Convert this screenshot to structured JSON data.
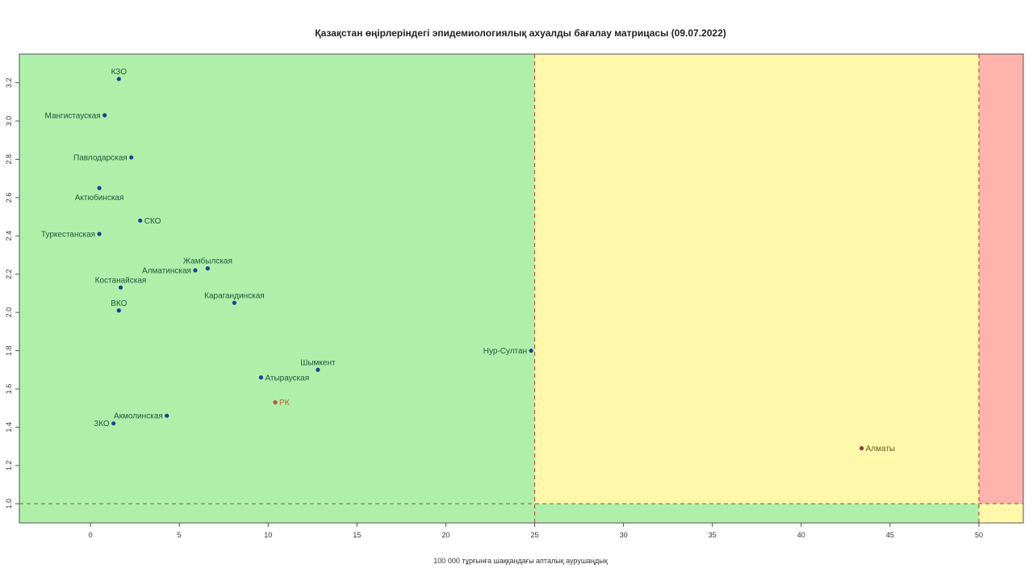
{
  "chart_data": {
    "type": "scatter",
    "title": "Қазақстан өңірлеріндегі эпидемиологиялық ахуалды бағалау матрицасы  (09.07.2022)",
    "xlabel": "100 000 тұрғынға шаққандағы апталық аурушаңдық",
    "ylabel": "",
    "xlim": [
      -4,
      52.5
    ],
    "ylim": [
      0.9,
      3.35
    ],
    "x_ticks": [
      0,
      5,
      10,
      15,
      20,
      25,
      30,
      35,
      40,
      45,
      50
    ],
    "y_ticks": [
      1.0,
      1.2,
      1.4,
      1.6,
      1.8,
      2.0,
      2.2,
      2.4,
      2.6,
      2.8,
      3.0,
      3.2
    ],
    "y_tick_labels": [
      "1.0",
      "1.2",
      "1.4",
      "1.6",
      "1.8",
      "2.0",
      "2.2",
      "2.4",
      "2.6",
      "2.8",
      "3.0",
      "3.2"
    ],
    "zones": [
      {
        "name": "green",
        "x_from": -4,
        "x_to": 25,
        "y_from": 1.0,
        "y_to": 3.35,
        "color": "#aef0aa"
      },
      {
        "name": "yellow",
        "x_from": 25,
        "x_to": 50,
        "y_from": 1.0,
        "y_to": 3.35,
        "color": "#fff8aa"
      },
      {
        "name": "red",
        "x_from": 50,
        "x_to": 52.5,
        "y_from": 1.0,
        "y_to": 3.35,
        "color": "#ffb3ad"
      },
      {
        "name": "green-bottom",
        "x_from": -4,
        "x_to": 50,
        "y_from": 0.9,
        "y_to": 1.0,
        "color": "#aef0aa"
      },
      {
        "name": "yellow-bottom",
        "x_from": 50,
        "x_to": 52.5,
        "y_from": 0.9,
        "y_to": 1.0,
        "color": "#fff8aa"
      }
    ],
    "thresholds": {
      "x": [
        25,
        50
      ],
      "y": [
        1.0
      ]
    },
    "points": [
      {
        "label": "КЗО",
        "x": 1.6,
        "y": 3.22,
        "pos": "above",
        "color": "#1f3f8f",
        "label_color": "#1a5a3a"
      },
      {
        "label": "Мангистауская",
        "x": 0.8,
        "y": 3.03,
        "pos": "left",
        "color": "#1f3f8f",
        "label_color": "#1a5a3a"
      },
      {
        "label": "Павлодарская",
        "x": 2.3,
        "y": 2.81,
        "pos": "left",
        "color": "#1f3f8f",
        "label_color": "#1a5a3a"
      },
      {
        "label": "Актюбинская",
        "x": 0.5,
        "y": 2.65,
        "pos": "below",
        "color": "#1f3f8f",
        "label_color": "#1a5a3a"
      },
      {
        "label": "СКО",
        "x": 2.8,
        "y": 2.48,
        "pos": "right",
        "color": "#1f3f8f",
        "label_color": "#1a5a3a"
      },
      {
        "label": "Туркестанская",
        "x": 0.5,
        "y": 2.41,
        "pos": "left",
        "color": "#1f3f8f",
        "label_color": "#1a5a3a"
      },
      {
        "label": "Жамбылская",
        "x": 6.6,
        "y": 2.23,
        "pos": "above",
        "color": "#1f3f8f",
        "label_color": "#1a5a3a"
      },
      {
        "label": "Алматинская",
        "x": 5.9,
        "y": 2.22,
        "pos": "left",
        "color": "#1f3f8f",
        "label_color": "#1a5a3a"
      },
      {
        "label": "Костанайская",
        "x": 1.7,
        "y": 2.13,
        "pos": "above",
        "color": "#1f3f8f",
        "label_color": "#1a5a3a"
      },
      {
        "label": "Карагандинская",
        "x": 8.1,
        "y": 2.05,
        "pos": "above",
        "color": "#1f3f8f",
        "label_color": "#1a5a3a"
      },
      {
        "label": "ВКО",
        "x": 1.6,
        "y": 2.01,
        "pos": "above",
        "color": "#1f3f8f",
        "label_color": "#1a5a3a"
      },
      {
        "label": "Нур-Султан",
        "x": 24.8,
        "y": 1.8,
        "pos": "left",
        "color": "#1f3f8f",
        "label_color": "#1a5a3a"
      },
      {
        "label": "Шымкент",
        "x": 12.8,
        "y": 1.7,
        "pos": "above",
        "color": "#1f3f8f",
        "label_color": "#1a5a3a"
      },
      {
        "label": "Атырауская",
        "x": 9.6,
        "y": 1.66,
        "pos": "right",
        "color": "#1f3f8f",
        "label_color": "#1a5a3a"
      },
      {
        "label": "РК",
        "x": 10.4,
        "y": 1.53,
        "pos": "right",
        "color": "#c0504d",
        "label_color": "#c06030"
      },
      {
        "label": "Акмолинская",
        "x": 4.3,
        "y": 1.46,
        "pos": "left",
        "color": "#1f3f8f",
        "label_color": "#1a5a3a"
      },
      {
        "label": "ЗКО",
        "x": 1.3,
        "y": 1.42,
        "pos": "left",
        "color": "#1f3f8f",
        "label_color": "#1a5a3a"
      },
      {
        "label": "Алматы",
        "x": 43.4,
        "y": 1.29,
        "pos": "right",
        "color": "#8a3b3b",
        "label_color": "#6a5a1a"
      }
    ]
  }
}
